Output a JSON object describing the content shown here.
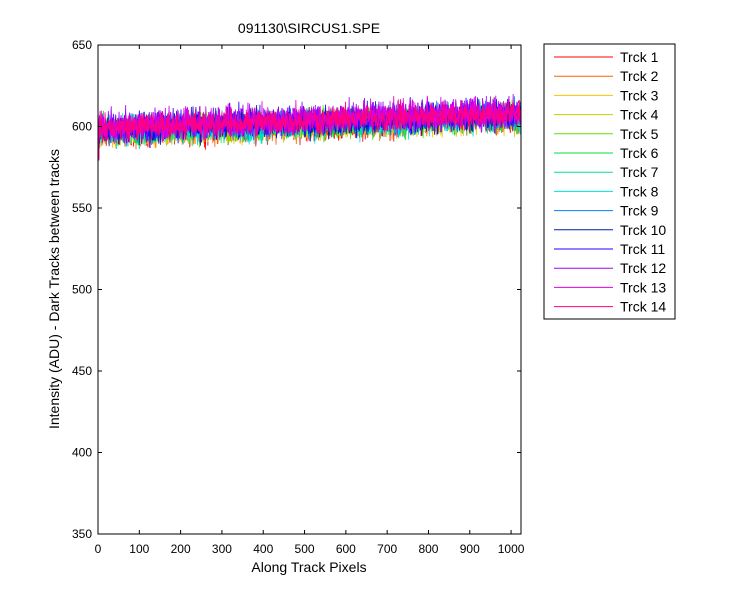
{
  "chart_data": {
    "type": "line",
    "title": "091130\\SIRCUS1.SPE",
    "xlabel": "Along Track Pixels",
    "ylabel": "Intensity (ADU) - Dark Tracks between tracks",
    "xlim": [
      0,
      1024
    ],
    "ylim": [
      350,
      650
    ],
    "xticks": [
      0,
      100,
      200,
      300,
      400,
      500,
      600,
      700,
      800,
      900,
      1000
    ],
    "yticks": [
      350,
      400,
      450,
      500,
      550,
      600,
      650
    ],
    "grid": false,
    "legend_position": "outside-top-right",
    "points_per_series": 1024,
    "series": [
      {
        "name": "Trck 1",
        "color": "#ff0000",
        "level_start": 596,
        "level_end": 604,
        "noise_halfwidth": 10
      },
      {
        "name": "Trck 2",
        "color": "#ff6000",
        "level_start": 596,
        "level_end": 605,
        "noise_halfwidth": 10
      },
      {
        "name": "Trck 3",
        "color": "#ffc000",
        "level_start": 596,
        "level_end": 605,
        "noise_halfwidth": 10
      },
      {
        "name": "Trck 4",
        "color": "#c8d000",
        "level_start": 596,
        "level_end": 605,
        "noise_halfwidth": 10
      },
      {
        "name": "Trck 5",
        "color": "#60e000",
        "level_start": 597,
        "level_end": 606,
        "noise_halfwidth": 10
      },
      {
        "name": "Trck 6",
        "color": "#00e040",
        "level_start": 597,
        "level_end": 606,
        "noise_halfwidth": 10
      },
      {
        "name": "Trck 7",
        "color": "#00e0a0",
        "level_start": 597,
        "level_end": 606,
        "noise_halfwidth": 10
      },
      {
        "name": "Trck 8",
        "color": "#00e0e0",
        "level_start": 597,
        "level_end": 606,
        "noise_halfwidth": 10
      },
      {
        "name": "Trck 9",
        "color": "#0080ff",
        "level_start": 598,
        "level_end": 607,
        "noise_halfwidth": 10
      },
      {
        "name": "Trck 10",
        "color": "#0020a0",
        "level_start": 598,
        "level_end": 607,
        "noise_halfwidth": 10
      },
      {
        "name": "Trck 11",
        "color": "#2000ff",
        "level_start": 599,
        "level_end": 608,
        "noise_halfwidth": 11
      },
      {
        "name": "Trck 12",
        "color": "#a000ff",
        "level_start": 600,
        "level_end": 609,
        "noise_halfwidth": 11
      },
      {
        "name": "Trck 13",
        "color": "#e000e0",
        "level_start": 600,
        "level_end": 609,
        "noise_halfwidth": 11
      },
      {
        "name": "Trck 14",
        "color": "#ff0080",
        "level_start": 599,
        "level_end": 608,
        "noise_halfwidth": 10
      }
    ]
  }
}
